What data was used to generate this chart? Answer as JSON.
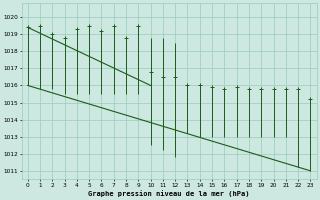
{
  "hours": [
    0,
    1,
    2,
    3,
    4,
    5,
    6,
    7,
    8,
    9,
    10,
    11,
    12,
    13,
    14,
    15,
    16,
    17,
    18,
    19,
    20,
    21,
    22,
    23
  ],
  "pressure_top": [
    1019.4,
    1019.5,
    1019.0,
    1018.8,
    1019.3,
    1019.5,
    1019.2,
    1019.5,
    1018.8,
    1019.5,
    1018.8,
    1018.8,
    1018.5,
    1016.0,
    1016.0,
    1015.9,
    1015.8,
    1015.9,
    1015.8,
    1015.8,
    1015.8,
    1015.8,
    1015.8,
    1015.2
  ],
  "pressure_bot": [
    1016.0,
    1015.8,
    1015.8,
    1015.5,
    1015.5,
    1015.5,
    1015.5,
    1015.5,
    1015.5,
    1015.5,
    1012.5,
    1012.2,
    1011.8,
    1013.2,
    1013.0,
    1013.0,
    1013.0,
    1013.0,
    1013.0,
    1013.0,
    1013.0,
    1013.0,
    1011.2,
    1011.0
  ],
  "pressure_pt": [
    1019.4,
    1019.5,
    1019.0,
    1018.8,
    1019.3,
    1019.5,
    1019.2,
    1019.5,
    1018.8,
    1019.5,
    1016.8,
    1016.5,
    1016.5,
    1016.0,
    1016.0,
    1015.9,
    1015.8,
    1015.9,
    1015.8,
    1015.8,
    1015.8,
    1015.8,
    1015.8,
    1015.2
  ],
  "trend1_x": [
    0,
    10
  ],
  "trend1_y": [
    1019.4,
    1016.0
  ],
  "trend2_x": [
    0,
    23
  ],
  "trend2_y": [
    1016.0,
    1011.0
  ],
  "bg_color": "#cce8e0",
  "grid_color": "#99ccbb",
  "line_color": "#1a5c1a",
  "yticks": [
    1011,
    1012,
    1013,
    1014,
    1015,
    1016,
    1017,
    1018,
    1019,
    1020
  ],
  "xlabel": "Graphe pression niveau de la mer (hPa)",
  "ylim": [
    1010.5,
    1020.8
  ],
  "xlim": [
    -0.5,
    23.5
  ]
}
